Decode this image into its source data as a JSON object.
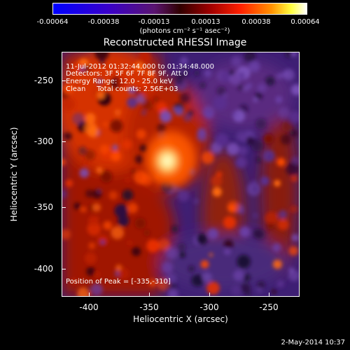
{
  "colorbar": {
    "ticks": [
      "-0.00064",
      "-0.00038",
      "-0.00013",
      "0.00013",
      "0.00038",
      "0.00064"
    ],
    "unit": "(photons cm⁻² s⁻¹ asec⁻²)"
  },
  "title": "Reconstructed RHESSI Image",
  "info": {
    "time": "11-Jul-2012 01:32:44.000 to 01:34:48.000",
    "detectors": "Detectors: 3F 5F 6F 7F 8F 9F, Att 0",
    "energy": "Energy Range: 12.0 - 25.0 keV",
    "clean": "Clean     Total counts: 2.56E+03"
  },
  "peak": "Position of Peak = [-335,-310]",
  "axes": {
    "xlabel": "Heliocentric X (arcsec)",
    "ylabel": "Heliocentric Y (arcsec)",
    "xticks": [
      "-400",
      "-350",
      "-300",
      "-250"
    ],
    "yticks": [
      "-250",
      "-300",
      "-350",
      "-400"
    ]
  },
  "date": "2-May-2014 10:37",
  "colors": {
    "low": "#0000ff",
    "mid": "#ff0000",
    "high": "#ffffff",
    "background": "#000000"
  }
}
